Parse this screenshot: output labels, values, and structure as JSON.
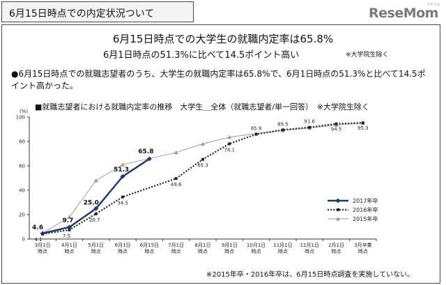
{
  "header": {
    "title": "6月15日時点での内定状況ついて"
  },
  "logo": {
    "text": "ReseMom",
    "subtext": "リセマム"
  },
  "headline": {
    "line1": "6月15日時点での大学生の就職内定率は65.8%",
    "line2": "6月1日時点の51.3%に比べて14.5ポイント高い",
    "note": "※大学院生除く"
  },
  "summary": "●6月15日時点での就職志望者のうち、大学生の就職内定率は65.8%で、6月1日時点の51.3%と比べて14.5ポイント高かった。",
  "chart_data": {
    "type": "line",
    "title": "■就職志望者における就職内定率の推移　大学生＿全体（就職志望者/単一回答）　※大学院生除く",
    "ylabel": "(%)",
    "ylim": [
      0,
      100
    ],
    "yticks": [
      "0",
      "20",
      "40",
      "60",
      "80",
      "100"
    ],
    "categories": [
      "3月1日時点",
      "4月1日時点",
      "5月1日時点",
      "6月1日時点",
      "6月15日時点",
      "7月1日時点",
      "8月1日時点",
      "9月1日時点",
      "10月1日時点",
      "11月1日時点",
      "12月1日時点",
      "2月1日時点",
      "3月卒業時点"
    ],
    "series": [
      {
        "name": "2017年卒",
        "color": "#1f3a6e",
        "values": [
          4.6,
          9.7,
          25.0,
          51.3,
          65.8,
          null,
          null,
          null,
          null,
          null,
          null,
          null,
          null
        ],
        "labels": [
          "4.6",
          "9.7",
          "25.0",
          "51.3",
          "65.8",
          null,
          null,
          null,
          null,
          null,
          null,
          null,
          null
        ]
      },
      {
        "name": "2016年卒",
        "color": "#222222",
        "values": [
          4.1,
          7.5,
          20.7,
          34.5,
          null,
          49.6,
          65.3,
          78.1,
          85.9,
          89.5,
          91.6,
          94.5,
          95.3
        ],
        "labels": [
          "4.1",
          "7.5",
          "20.7",
          "34.5",
          null,
          "49.6",
          "65.3",
          "78.1",
          "85.9",
          "89.5",
          "91.6",
          "94.5",
          "95.3"
        ]
      },
      {
        "name": "2015年卒",
        "color": "#999999",
        "values": [
          4.8,
          18.0,
          48.0,
          61.0,
          null,
          71.0,
          78.0,
          83.5,
          86.5,
          89.0,
          91.0,
          93.5,
          95.0
        ]
      }
    ],
    "legend_position": "bottom-right",
    "grid": false
  },
  "footnote": "※2015年卒・2016年卒は、6月15日時点調査を実施していない。"
}
